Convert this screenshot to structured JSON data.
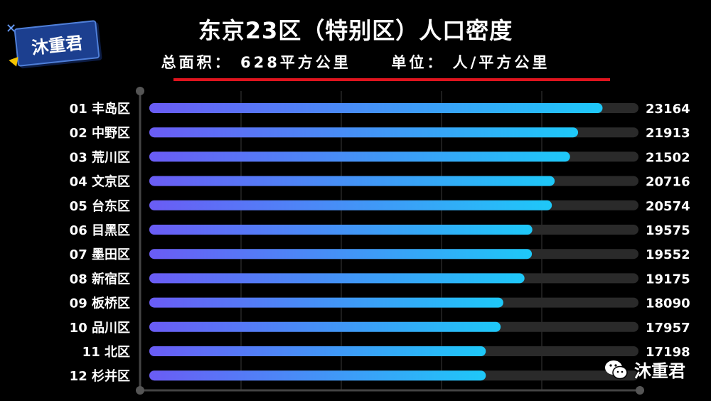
{
  "badge": {
    "label": "沐重君"
  },
  "header": {
    "title": "东京23区（特别区）人口密度",
    "subtitle": "总面积： 628平方公里     单位： 人/平方公里"
  },
  "watermark": {
    "label": "沐重君",
    "icon": "wechat-icon"
  },
  "colors": {
    "background": "#000000",
    "bar_start": "#6a5cf5",
    "bar_end": "#1ec8f8",
    "track": "#2a2a2a",
    "accent_line": "#e0141e"
  },
  "chart_data": {
    "type": "bar",
    "orientation": "horizontal",
    "title": "东京23区（特别区）人口密度",
    "subtitle": "总面积： 628平方公里     单位： 人/平方公里",
    "categories": [
      "01 丰岛区",
      "02 中野区",
      "03 荒川区",
      "04 文京区",
      "05 台东区",
      "06 目黑区",
      "07 墨田区",
      "08 新宿区",
      "09 板桥区",
      "10 品川区",
      "11 北区",
      "12 杉并区"
    ],
    "values": [
      23164,
      21913,
      21502,
      20716,
      20574,
      19575,
      19552,
      19175,
      18090,
      17957,
      17198,
      17198
    ],
    "value_labels": [
      "23164",
      "21913",
      "21502",
      "20716",
      "20574",
      "19575",
      "19552",
      "19175",
      "18090",
      "17957",
      "17198",
      ""
    ],
    "xlim": [
      0,
      25000
    ],
    "grid": true,
    "legend": "none"
  }
}
